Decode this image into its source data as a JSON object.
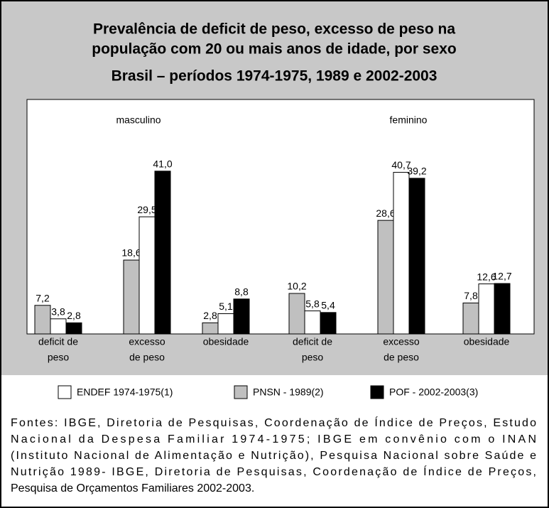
{
  "chart_data": {
    "type": "bar",
    "title": [
      "Prevalência de deficit de peso, excesso de peso na",
      "população com 20 ou mais anos de idade, por sexo"
    ],
    "subtitle": "Brasil – períodos 1974-1975, 1989  e 2002-2003",
    "groups": [
      "masculino",
      "feminino"
    ],
    "categories": [
      [
        "deficit de",
        "peso"
      ],
      [
        "excesso",
        "de peso"
      ],
      [
        "obesidade"
      ],
      [
        "deficit de",
        "peso"
      ],
      [
        "excesso",
        "de peso"
      ],
      [
        "obesidade"
      ]
    ],
    "series": [
      {
        "name": "PNSN - 1989(2)",
        "color": "#c0c0c0",
        "values": [
          7.2,
          18.6,
          2.8,
          10.2,
          28.6,
          7.8
        ],
        "value_labels": [
          "7,2",
          "18,6",
          "2,8",
          "10,2",
          "28,6",
          "7,8"
        ]
      },
      {
        "name": "ENDEF 1974-1975(1)",
        "color": "#ffffff",
        "values": [
          3.8,
          29.5,
          5.1,
          5.8,
          40.7,
          12.6
        ],
        "value_labels": [
          "3,8",
          "29,5",
          "5,1",
          "5,8",
          "40,7",
          "12,6"
        ]
      },
      {
        "name": "POF - 2002-2003(3)",
        "color": "#000000",
        "values": [
          2.8,
          41.0,
          8.8,
          5.4,
          39.2,
          12.7
        ],
        "value_labels": [
          "2,8",
          "41,0",
          "8,8",
          "5,4",
          "39,2",
          "12,7"
        ]
      }
    ],
    "ylim": [
      0,
      45
    ],
    "source": [
      "Fontes: IBGE, Diretoria de Pesquisas, Coordenação de Índice de Preços, Estudo",
      "Nacional da Despesa Familiar 1974-1975; IBGE em convênio com o INAN",
      "(Instituto Nacional de Alimentação e Nutrição), Pesquisa Nacional sobre Saúde e",
      "Nutrição 1989- IBGE, Diretoria de Pesquisas, Coordenação de Índice de Preços,",
      "Pesquisa de Orçamentos Familiares 2002-2003."
    ]
  }
}
